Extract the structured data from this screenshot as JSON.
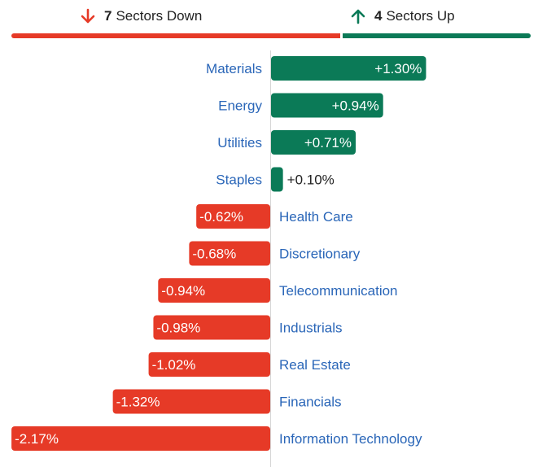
{
  "summary": {
    "down_count": "7",
    "down_label": "Sectors Down",
    "up_count": "4",
    "up_label": "Sectors Up",
    "down_icon": "arrow-down-icon",
    "up_icon": "arrow-up-icon"
  },
  "colors": {
    "up": "#0b7a57",
    "down": "#e63a27",
    "label": "#2a66b8",
    "text": "#222222"
  },
  "chart_data": {
    "type": "bar",
    "orientation": "horizontal-diverging",
    "categories": [
      "Materials",
      "Energy",
      "Utilities",
      "Staples",
      "Health Care",
      "Discretionary",
      "Telecommunication",
      "Industrials",
      "Real Estate",
      "Financials",
      "Information Technology"
    ],
    "values": [
      1.3,
      0.94,
      0.71,
      0.1,
      -0.62,
      -0.68,
      -0.94,
      -0.98,
      -1.02,
      -1.32,
      -2.17
    ],
    "labels": [
      "+1.30%",
      "+0.94%",
      "+0.71%",
      "+0.10%",
      "-0.62%",
      "-0.68%",
      "-0.94%",
      "-0.98%",
      "-1.02%",
      "-1.32%",
      "-2.17%"
    ],
    "unit": "%",
    "title": "",
    "xlabel": "",
    "ylabel": ""
  }
}
